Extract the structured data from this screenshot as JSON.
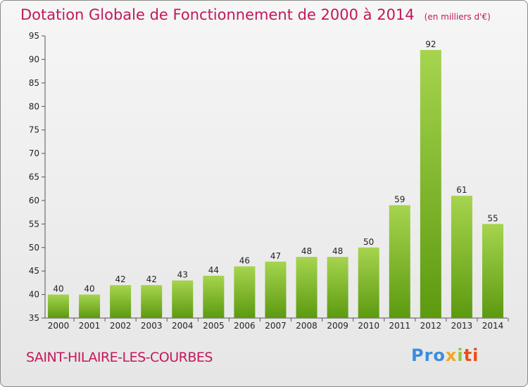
{
  "title": "Dotation Globale de Fonctionnement de 2000 à 2014",
  "subtitle": "(en milliers d'€)",
  "commune": "SAINT-HILAIRE-LES-COURBES",
  "logo": {
    "p1": "Pro",
    "p2": "x",
    "p3": "i",
    "p4": "ti"
  },
  "colors": {
    "bar_light": "#a6d44e",
    "bar_dark": "#5c9a10",
    "title": "#c2185b"
  },
  "chart_data": {
    "type": "bar",
    "title": "Dotation Globale de Fonctionnement de 2000 à 2014",
    "subtitle": "(en milliers d'€)",
    "categories": [
      "2000",
      "2001",
      "2002",
      "2003",
      "2004",
      "2005",
      "2006",
      "2007",
      "2008",
      "2009",
      "2010",
      "2011",
      "2012",
      "2013",
      "2014"
    ],
    "values": [
      40,
      40,
      42,
      42,
      43,
      44,
      46,
      47,
      48,
      48,
      50,
      59,
      92,
      61,
      55
    ],
    "ylim": [
      35,
      95
    ],
    "yticks": [
      35,
      40,
      45,
      50,
      55,
      60,
      65,
      70,
      75,
      80,
      85,
      90,
      95
    ],
    "grid": false,
    "legend": "none"
  }
}
